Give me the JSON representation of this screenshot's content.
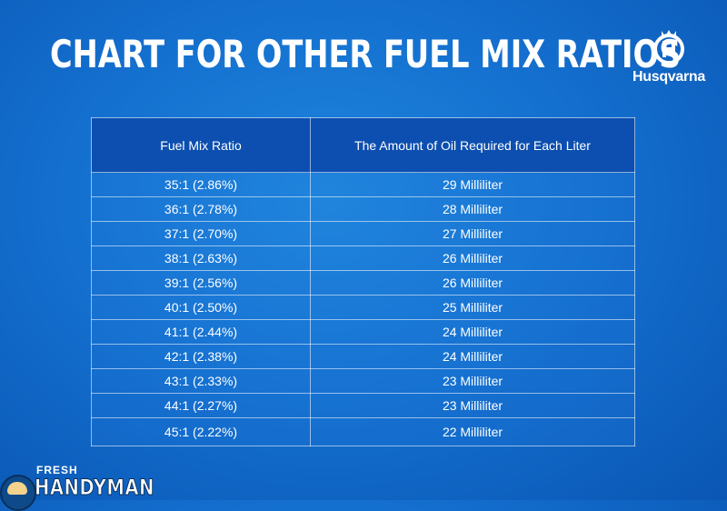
{
  "header": {
    "title": "CHART FOR OTHER FUEL MIX RATIOS"
  },
  "brand": {
    "name": "Husqvarna",
    "icon": "husqvarna-crown-h-icon"
  },
  "table": {
    "columns": [
      "Fuel Mix Ratio",
      "The Amount of Oil Required for Each Liter"
    ],
    "rows": [
      [
        "35:1 (2.86%)",
        "29 Milliliter"
      ],
      [
        "36:1 (2.78%)",
        "28 Milliliter"
      ],
      [
        "37:1 (2.70%)",
        "27 Milliliter"
      ],
      [
        "38:1 (2.63%)",
        "26 Milliliter"
      ],
      [
        "39:1 (2.56%)",
        "26 Milliliter"
      ],
      [
        "40:1 (2.50%)",
        "25 Milliliter"
      ],
      [
        "41:1 (2.44%)",
        "24 Milliliter"
      ],
      [
        "42:1 (2.38%)",
        "24 Milliliter"
      ],
      [
        "43:1 (2.33%)",
        "23 Milliliter"
      ],
      [
        "44:1 (2.27%)",
        "23 Milliliter"
      ],
      [
        "45:1 (2.22%)",
        "22 Milliliter"
      ]
    ]
  },
  "footer_logo": {
    "line1": "FRESH",
    "line2": "HANDYMAN",
    "icon": "handyman-mascot-icon"
  },
  "colors": {
    "background": "#1470cf",
    "header_row": "#0c4fb0",
    "text": "#ffffff"
  }
}
